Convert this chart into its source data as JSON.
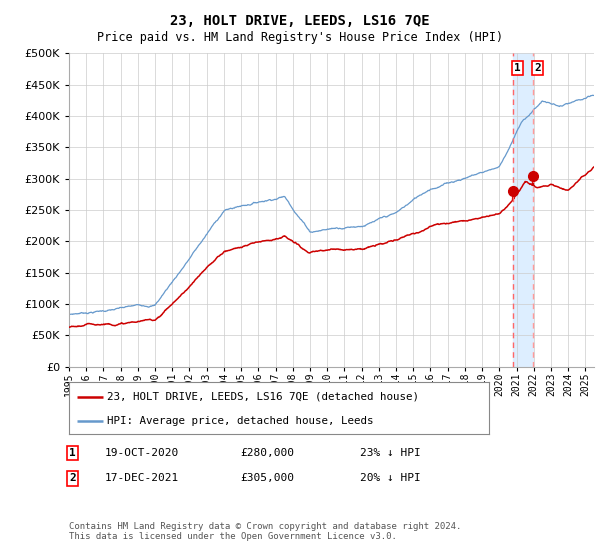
{
  "title": "23, HOLT DRIVE, LEEDS, LS16 7QE",
  "subtitle": "Price paid vs. HM Land Registry's House Price Index (HPI)",
  "red_label": "23, HOLT DRIVE, LEEDS, LS16 7QE (detached house)",
  "blue_label": "HPI: Average price, detached house, Leeds",
  "annotation1_date": "19-OCT-2020",
  "annotation1_price": "£280,000",
  "annotation1_pct": "23% ↓ HPI",
  "annotation1_year": 2020.8,
  "annotation1_value": 280000,
  "annotation2_date": "17-DEC-2021",
  "annotation2_price": "£305,000",
  "annotation2_pct": "20% ↓ HPI",
  "annotation2_year": 2021.96,
  "annotation2_value": 305000,
  "footer": "Contains HM Land Registry data © Crown copyright and database right 2024.\nThis data is licensed under the Open Government Licence v3.0.",
  "ylim": [
    0,
    500000
  ],
  "yticks": [
    0,
    50000,
    100000,
    150000,
    200000,
    250000,
    300000,
    350000,
    400000,
    450000,
    500000
  ],
  "xmin": 1995.0,
  "xmax": 2025.5,
  "red_color": "#cc0000",
  "blue_color": "#6699cc",
  "blue_fill_color": "#ddeeff",
  "shade_start": 2020.8,
  "shade_end": 2021.96,
  "background_color": "#ffffff",
  "grid_color": "#cccccc"
}
